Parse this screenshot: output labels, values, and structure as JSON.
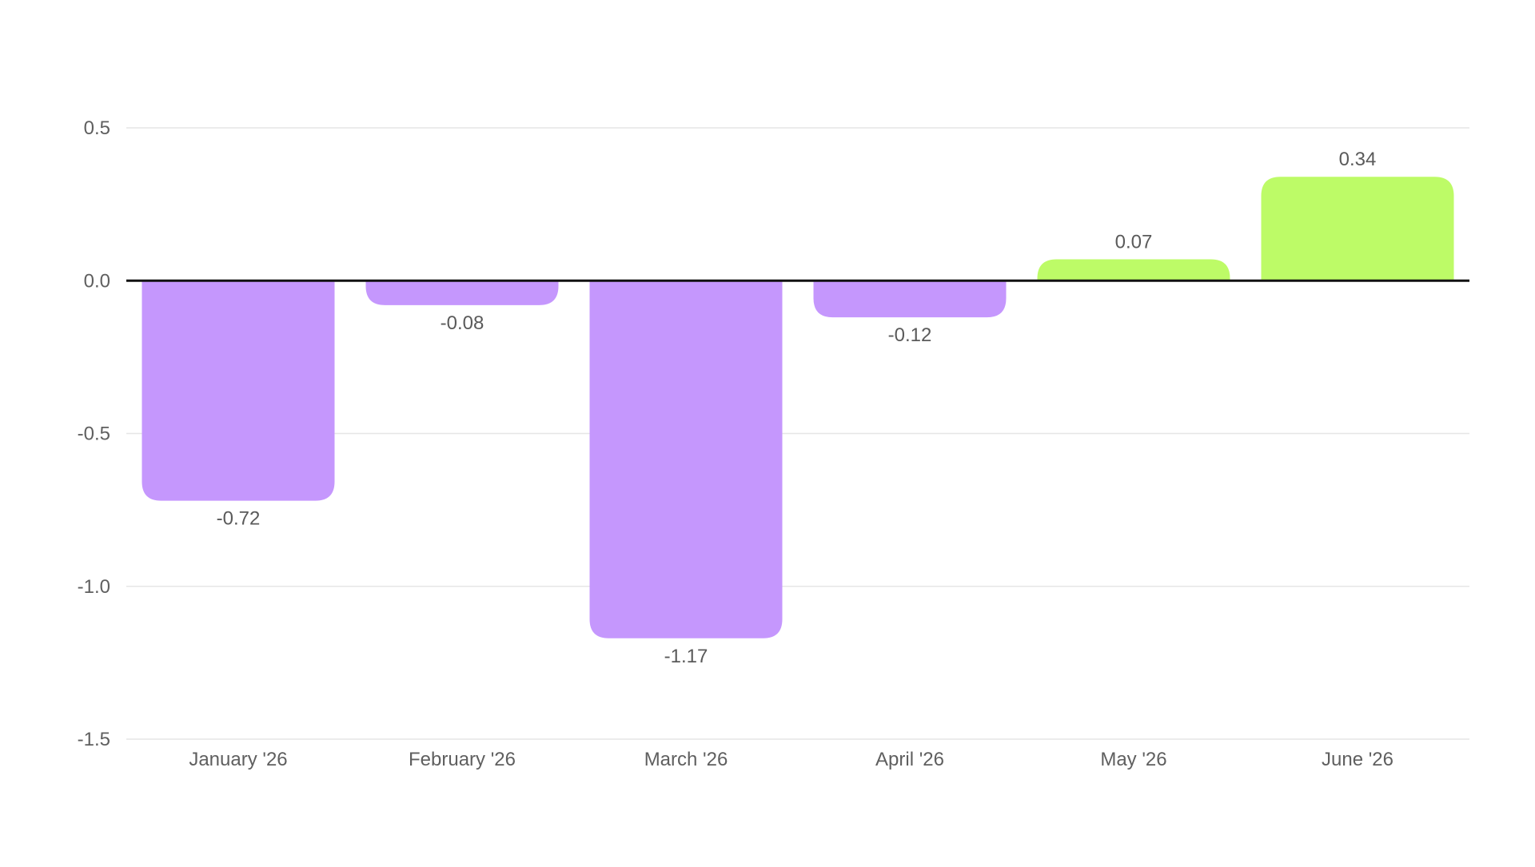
{
  "chart_data": {
    "type": "bar",
    "title": "",
    "xlabel": "",
    "ylabel": "",
    "categories": [
      "January '26",
      "February '26",
      "March '26",
      "April '26",
      "May '26",
      "June '26"
    ],
    "values": [
      -0.72,
      -0.08,
      -1.17,
      -0.12,
      0.07,
      0.34
    ],
    "value_labels": [
      "-0.72",
      "-0.08",
      "-1.17",
      "-0.12",
      "0.07",
      "0.34"
    ],
    "ylim": [
      -1.5,
      0.5
    ],
    "yticks": [
      0.5,
      0.0,
      -0.5,
      -1.0,
      -1.5
    ],
    "ytick_labels": [
      "0.5",
      "0.0",
      "-0.5",
      "-1.0",
      "-1.5"
    ],
    "grid": true,
    "legend": "none",
    "colors": {
      "negative": "#c597fd",
      "positive": "#bdfb67",
      "zero_line": "#111111",
      "grid": "#e6e6e6"
    }
  }
}
